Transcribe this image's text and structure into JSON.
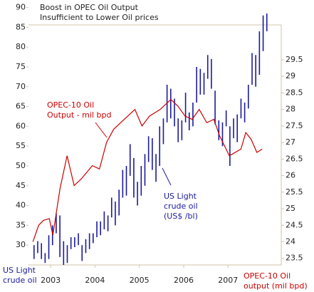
{
  "chart_data": {
    "type": "mixed",
    "title": [
      "Boost in OPEC Oil Output",
      "Insufficient to Lower Oil prices"
    ],
    "ylabel": [
      "US Light",
      "crude oil"
    ],
    "y2label": [
      "OPEC-10 Oil",
      "output (mil bpd)"
    ],
    "annotations": [
      {
        "lines": [
          "OPEC-10 Oil",
          "Output - mil bpd"
        ],
        "color": "#cc0000"
      },
      {
        "lines": [
          "US Light",
          "crude oil",
          "(US$ /bl)"
        ],
        "color": "#1a1a9c"
      }
    ],
    "xlim": [
      2002.5,
      2008.2
    ],
    "xticks": [
      2003,
      2004,
      2005,
      2006,
      2007
    ],
    "ylim": [
      25,
      91
    ],
    "yticks": [
      30,
      35,
      40,
      45,
      50,
      55,
      60,
      65,
      70,
      75,
      80,
      85,
      90
    ],
    "y2lim": [
      23.3,
      31.2
    ],
    "y2ticks": [
      23.5,
      24,
      24.5,
      25,
      25.5,
      26,
      26.5,
      27,
      27.5,
      28,
      28.5,
      29,
      29.5
    ],
    "series": [
      {
        "type": "hilo",
        "color": "#1a1a9c",
        "x": [
          2002.625,
          2002.708,
          2002.792,
          2002.875,
          2002.958,
          2003.042,
          2003.125,
          2003.208,
          2003.292,
          2003.375,
          2003.458,
          2003.542,
          2003.625,
          2003.708,
          2003.792,
          2003.875,
          2003.958,
          2004.042,
          2004.125,
          2004.208,
          2004.292,
          2004.375,
          2004.458,
          2004.542,
          2004.625,
          2004.708,
          2004.792,
          2004.875,
          2004.958,
          2005.042,
          2005.125,
          2005.208,
          2005.292,
          2005.375,
          2005.458,
          2005.542,
          2005.625,
          2005.708,
          2005.792,
          2005.875,
          2005.958,
          2006.042,
          2006.125,
          2006.208,
          2006.292,
          2006.375,
          2006.458,
          2006.542,
          2006.625,
          2006.708,
          2006.792,
          2006.875,
          2006.958,
          2007.042,
          2007.125,
          2007.208,
          2007.292,
          2007.375,
          2007.458,
          2007.542,
          2007.625,
          2007.708,
          2007.792,
          2007.875
        ],
        "low": [
          26.5,
          28,
          26.5,
          25.5,
          26.5,
          30,
          33,
          27,
          25,
          25.5,
          29,
          29.5,
          30,
          26,
          28,
          29,
          30.5,
          32,
          32.5,
          34,
          33.5,
          37,
          35,
          37.5,
          42,
          42.5,
          47.5,
          42,
          40,
          42.5,
          45,
          51,
          49,
          46,
          50,
          55.5,
          61,
          62,
          60,
          56,
          56.5,
          61,
          59,
          60,
          66,
          68,
          68,
          72,
          69.5,
          60.5,
          56.5,
          55,
          60,
          50,
          57,
          56,
          62,
          61,
          64.5,
          70.5,
          70,
          73,
          79,
          84
        ],
        "high": [
          30,
          31,
          30.5,
          28,
          32.5,
          35,
          38,
          37.5,
          31,
          30,
          32,
          32,
          33,
          30,
          31.5,
          33,
          33,
          36,
          36,
          38.5,
          37.5,
          42,
          41,
          44,
          49,
          50,
          55.5,
          52,
          46,
          50,
          53,
          57.5,
          57,
          53,
          60,
          62,
          70.5,
          69.5,
          67,
          62,
          61.5,
          68.5,
          63.5,
          66,
          75,
          74.5,
          73.5,
          78,
          77,
          69,
          61.5,
          61,
          64,
          60,
          62,
          63,
          67,
          66,
          70.5,
          78.5,
          78,
          84,
          88,
          88.5
        ]
      },
      {
        "type": "line",
        "axis": "y2",
        "color": "#cc0000",
        "x": [
          2002.6,
          2002.73,
          2002.84,
          2002.97,
          2003.05,
          2003.21,
          2003.37,
          2003.53,
          2003.69,
          2003.94,
          2004.1,
          2004.26,
          2004.42,
          2004.58,
          2004.74,
          2004.9,
          2005.06,
          2005.23,
          2005.47,
          2005.71,
          2005.87,
          2006.03,
          2006.19,
          2006.35,
          2006.52,
          2006.68,
          2006.81,
          2006.92,
          2007.03,
          2007.16,
          2007.29,
          2007.4,
          2007.52,
          2007.65,
          2007.77
        ],
        "values": [
          24.0,
          24.5,
          24.65,
          24.7,
          24.2,
          25.6,
          26.6,
          25.7,
          25.9,
          26.3,
          26.2,
          27.0,
          27.4,
          27.6,
          27.8,
          28.0,
          27.5,
          27.8,
          28.0,
          28.3,
          28.1,
          27.8,
          27.7,
          28.0,
          27.6,
          27.7,
          27.2,
          26.9,
          26.6,
          26.7,
          26.8,
          27.3,
          27.1,
          26.7,
          26.8
        ]
      }
    ]
  }
}
